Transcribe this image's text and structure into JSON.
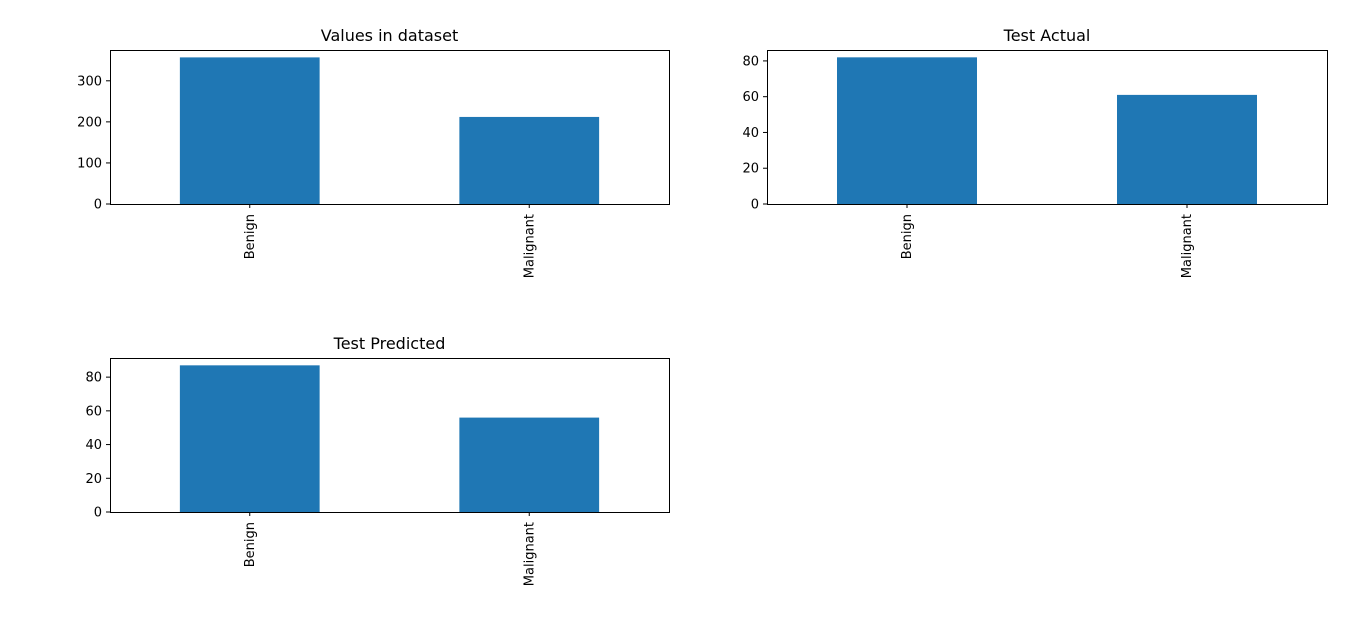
{
  "chart_data": [
    {
      "type": "bar",
      "title": "Values in dataset",
      "categories": [
        "Benign",
        "Malignant"
      ],
      "values": [
        357,
        212
      ],
      "ylim": [
        0,
        375
      ],
      "yticks": [
        0,
        100,
        200,
        300
      ],
      "xlabel": "",
      "ylabel": "",
      "bar_color": "#1f77b4",
      "grid": false,
      "tick_label_rotation": "vertical"
    },
    {
      "type": "bar",
      "title": "Test Actual",
      "categories": [
        "Benign",
        "Malignant"
      ],
      "values": [
        82,
        61
      ],
      "ylim": [
        0,
        86.1
      ],
      "yticks": [
        0,
        20,
        40,
        60,
        80
      ],
      "xlabel": "",
      "ylabel": "",
      "bar_color": "#1f77b4",
      "grid": false,
      "tick_label_rotation": "vertical"
    },
    {
      "type": "bar",
      "title": "Test Predicted",
      "categories": [
        "Benign",
        "Malignant"
      ],
      "values": [
        87,
        56
      ],
      "ylim": [
        0,
        91.35
      ],
      "yticks": [
        0,
        20,
        40,
        60,
        80
      ],
      "xlabel": "",
      "ylabel": "",
      "bar_color": "#1f77b4",
      "grid": false,
      "tick_label_rotation": "vertical"
    }
  ]
}
